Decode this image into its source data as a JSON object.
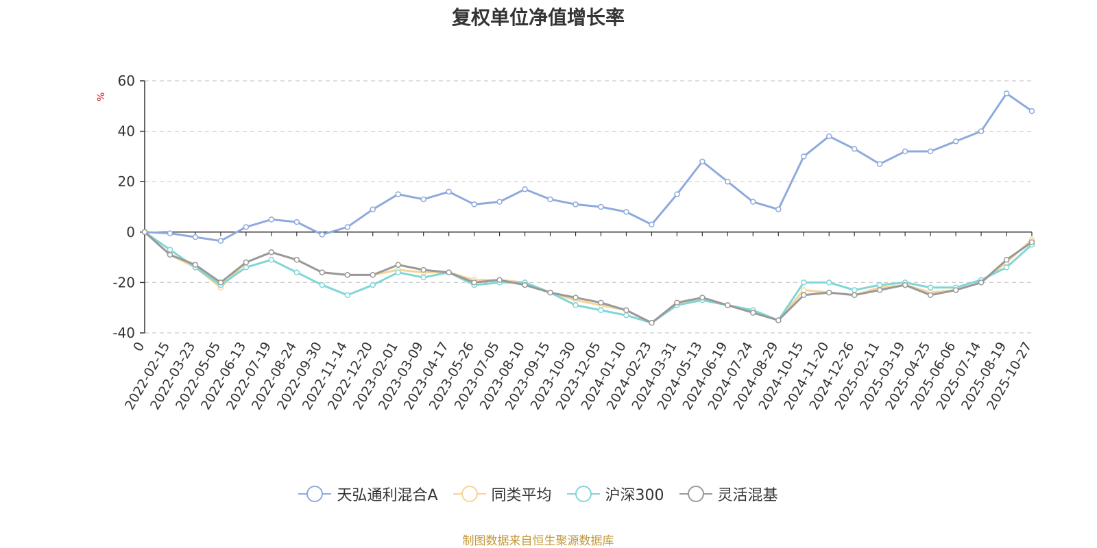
{
  "chart_data": {
    "type": "line",
    "title": "复权单位净值增长率",
    "ylabel": "%",
    "ylim": [
      -40,
      60
    ],
    "yticks": [
      60,
      40,
      20,
      0,
      -20,
      -40
    ],
    "grid": true,
    "legend_position": "bottom-center",
    "source": "制图数据来自恒生聚源数据库",
    "x_labels": [
      "0",
      "2022-02-15",
      "2022-03-23",
      "2022-05-05",
      "2022-06-13",
      "2022-07-19",
      "2022-08-24",
      "2022-09-30",
      "2022-11-14",
      "2022-12-20",
      "2023-02-01",
      "2023-03-09",
      "2023-04-17",
      "2023-05-26",
      "2023-07-05",
      "2023-08-10",
      "2023-09-15",
      "2023-10-30",
      "2023-12-05",
      "2024-01-10",
      "2024-02-23",
      "2024-03-31",
      "2024-05-13",
      "2024-06-19",
      "2024-07-24",
      "2024-08-29",
      "2024-10-15",
      "2024-11-20",
      "2024-12-26",
      "2025-02-11",
      "2025-03-19",
      "2025-04-25",
      "2025-06-06",
      "2025-07-14",
      "2025-08-19",
      "2025-10-27"
    ],
    "series": [
      {
        "name": "天弘通利混合A",
        "color": "#8eaadc",
        "values": [
          0,
          -0.5,
          -2,
          -3.5,
          2,
          5,
          4,
          -1,
          2,
          9,
          15,
          13,
          16,
          11,
          12,
          17,
          13,
          11,
          10,
          8,
          3,
          15,
          28,
          20,
          12,
          9,
          30,
          38,
          33,
          27,
          32,
          32,
          36,
          40,
          55,
          48
        ]
      },
      {
        "name": "同类平均",
        "color": "#f7d495",
        "values": [
          0,
          -9,
          -14,
          -22,
          -12,
          -8,
          -11,
          -16,
          -17,
          -17,
          -15,
          -16,
          -16,
          -19,
          -19,
          -20,
          -24,
          -27,
          -29,
          -31,
          -36,
          -28,
          -27,
          -29,
          -31,
          -35,
          -23,
          -24,
          -25,
          -22,
          -21,
          -24,
          -23,
          -20,
          -12,
          -3
        ]
      },
      {
        "name": "沪深300",
        "color": "#7fd6d6",
        "values": [
          0,
          -7,
          -14,
          -21,
          -14,
          -11,
          -16,
          -21,
          -25,
          -21,
          -16,
          -18,
          -16,
          -21,
          -20,
          -20,
          -24,
          -29,
          -31,
          -33,
          -36,
          -29,
          -27,
          -29,
          -31,
          -35,
          -20,
          -20,
          -23,
          -21,
          -20,
          -22,
          -22,
          -19,
          -14,
          -5
        ]
      },
      {
        "name": "灵活混基",
        "color": "#999999",
        "values": [
          0,
          -9,
          -13,
          -20,
          -12,
          -8,
          -11,
          -16,
          -17,
          -17,
          -13,
          -15,
          -16,
          -20,
          -19,
          -21,
          -24,
          -26,
          -28,
          -31,
          -36,
          -28,
          -26,
          -29,
          -32,
          -35,
          -25,
          -24,
          -25,
          -23,
          -21,
          -25,
          -23,
          -20,
          -11,
          -4
        ]
      }
    ]
  }
}
